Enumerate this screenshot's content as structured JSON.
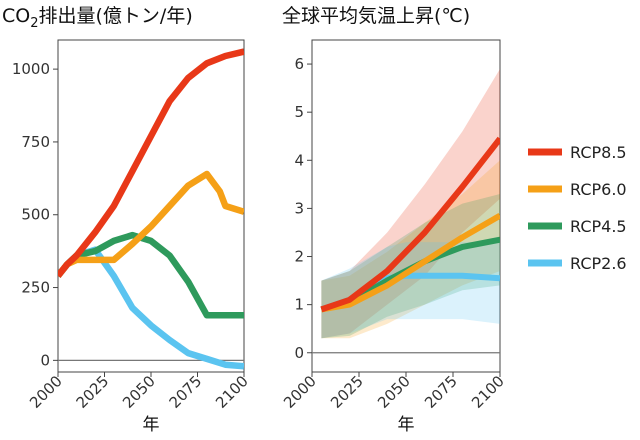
{
  "chart_data": [
    {
      "type": "line",
      "title_prefix": "CO",
      "title_sub": "2",
      "title_suffix": "排出量(億トン/年)",
      "xlabel": "年",
      "ylabel": "",
      "xlim": [
        2000,
        2100
      ],
      "ylim": [
        -40,
        1100
      ],
      "xticks": [
        2000,
        2025,
        2050,
        2075,
        2100
      ],
      "yticks": [
        0,
        250,
        500,
        750,
        1000
      ],
      "zero_line": true,
      "series": [
        {
          "name": "RCP8.5",
          "color": "#e83818",
          "x": [
            2000,
            2005,
            2010,
            2020,
            2030,
            2040,
            2050,
            2060,
            2070,
            2080,
            2090,
            2100
          ],
          "values": [
            290,
            330,
            360,
            440,
            530,
            650,
            770,
            890,
            970,
            1020,
            1045,
            1060
          ]
        },
        {
          "name": "RCP6.0",
          "color": "#f5a017",
          "x": [
            2000,
            2005,
            2010,
            2020,
            2030,
            2040,
            2050,
            2060,
            2070,
            2080,
            2087,
            2090,
            2100
          ],
          "values": [
            290,
            330,
            345,
            345,
            345,
            400,
            460,
            530,
            600,
            640,
            580,
            530,
            510
          ]
        },
        {
          "name": "RCP4.5",
          "color": "#2e9a5c",
          "x": [
            2000,
            2005,
            2010,
            2020,
            2030,
            2040,
            2045,
            2050,
            2060,
            2070,
            2080,
            2090,
            2100
          ],
          "values": [
            290,
            330,
            360,
            375,
            410,
            430,
            420,
            410,
            360,
            270,
            155,
            155,
            155
          ]
        },
        {
          "name": "RCP2.6",
          "color": "#5bc4f0",
          "x": [
            2000,
            2005,
            2010,
            2020,
            2030,
            2040,
            2050,
            2060,
            2070,
            2080,
            2090,
            2100
          ],
          "values": [
            290,
            330,
            360,
            380,
            290,
            180,
            120,
            70,
            25,
            5,
            -15,
            -20
          ]
        }
      ]
    },
    {
      "type": "line",
      "title": "全球平均気温上昇(℃)",
      "xlabel": "年",
      "ylabel": "",
      "xlim": [
        2000,
        2100
      ],
      "ylim": [
        -0.4,
        6.5
      ],
      "xticks": [
        2000,
        2025,
        2050,
        2075,
        2100
      ],
      "yticks": [
        0,
        1,
        2,
        3,
        4,
        5,
        6
      ],
      "zero_line": true,
      "series": [
        {
          "name": "RCP8.5",
          "color": "#e83818",
          "x": [
            2005,
            2020,
            2040,
            2060,
            2080,
            2100
          ],
          "values": [
            0.9,
            1.1,
            1.7,
            2.5,
            3.45,
            4.45
          ],
          "lower": [
            0.3,
            0.4,
            1.0,
            1.6,
            2.5,
            3.2
          ],
          "upper": [
            1.5,
            1.7,
            2.5,
            3.5,
            4.6,
            5.9
          ]
        },
        {
          "name": "RCP6.0",
          "color": "#f5a017",
          "x": [
            2005,
            2020,
            2040,
            2060,
            2080,
            2100
          ],
          "values": [
            0.9,
            1.0,
            1.4,
            1.9,
            2.4,
            2.85
          ],
          "lower": [
            0.3,
            0.3,
            0.6,
            1.0,
            1.4,
            1.7
          ],
          "upper": [
            1.5,
            1.6,
            2.1,
            2.7,
            3.3,
            4.0
          ]
        },
        {
          "name": "RCP4.5",
          "color": "#2e9a5c",
          "x": [
            2005,
            2020,
            2040,
            2060,
            2080,
            2100
          ],
          "values": [
            0.9,
            1.05,
            1.5,
            1.9,
            2.2,
            2.35
          ],
          "lower": [
            0.3,
            0.35,
            0.75,
            1.0,
            1.3,
            1.4
          ],
          "upper": [
            1.5,
            1.7,
            2.2,
            2.7,
            3.1,
            3.3
          ]
        },
        {
          "name": "RCP2.6",
          "color": "#5bc4f0",
          "x": [
            2005,
            2020,
            2040,
            2050,
            2060,
            2080,
            2100
          ],
          "values": [
            0.9,
            1.1,
            1.55,
            1.6,
            1.6,
            1.6,
            1.55
          ],
          "lower": [
            0.3,
            0.4,
            0.7,
            0.7,
            0.7,
            0.7,
            0.6
          ],
          "upper": [
            1.5,
            1.75,
            2.2,
            2.3,
            2.3,
            2.3,
            2.3
          ]
        }
      ]
    }
  ],
  "legend": {
    "position": "right",
    "items": [
      {
        "label": "RCP8.5",
        "color": "#e83818"
      },
      {
        "label": "RCP6.0",
        "color": "#f5a017"
      },
      {
        "label": "RCP4.5",
        "color": "#2e9a5c"
      },
      {
        "label": "RCP2.6",
        "color": "#5bc4f0"
      }
    ]
  }
}
